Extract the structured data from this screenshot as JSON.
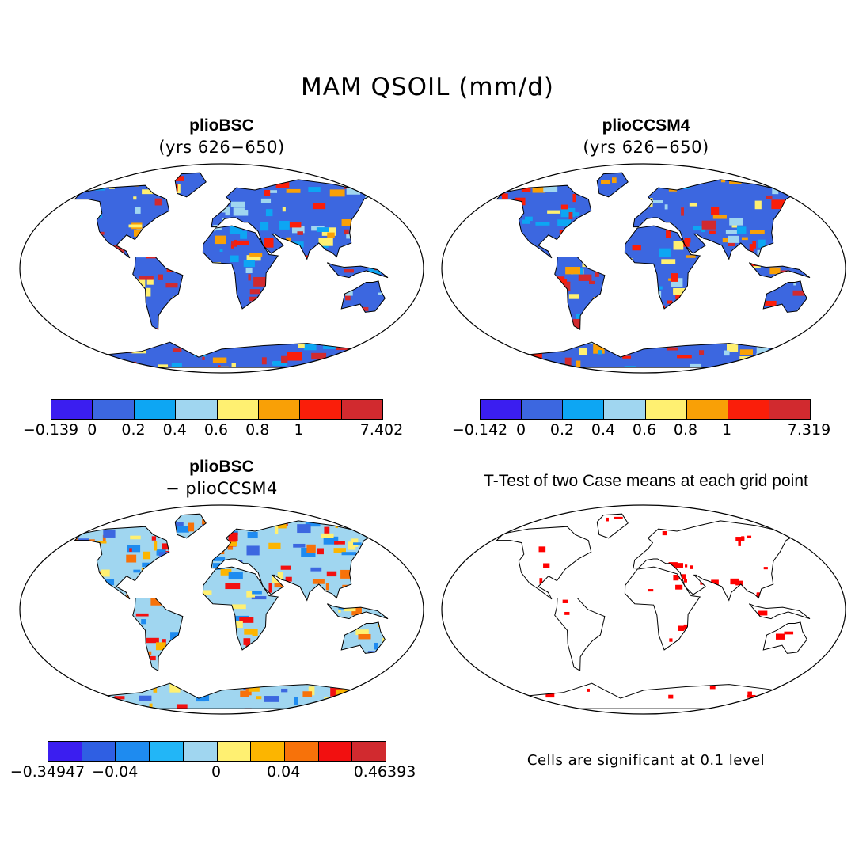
{
  "title": "MAM QSOIL (mm/d)",
  "panels": [
    {
      "id": "bsc",
      "title": "plioBSC",
      "subtitle": "(yrs 626−650)",
      "colorbar": {
        "colors": [
          "#3b1ef0",
          "#3c67e0",
          "#0da6f3",
          "#a0d6f0",
          "#fff071",
          "#f9a006",
          "#fa1e0a",
          "#d12a2f"
        ],
        "ticks": [
          "−0.139",
          "0",
          "0.2",
          "0.4",
          "0.6",
          "0.8",
          "1",
          "7.402"
        ]
      }
    },
    {
      "id": "ccsm4",
      "title": "plioCCSM4",
      "subtitle": "(yrs 626−650)",
      "colorbar": {
        "colors": [
          "#3b1ef0",
          "#3c67e0",
          "#0da6f3",
          "#a0d6f0",
          "#fff071",
          "#f9a006",
          "#fa1e0a",
          "#d12a2f"
        ],
        "ticks": [
          "−0.142",
          "0",
          "0.2",
          "0.4",
          "0.6",
          "0.8",
          "1",
          "7.319"
        ]
      }
    },
    {
      "id": "diff",
      "title": "plioBSC",
      "subtitle": "− plioCCSM4",
      "colorbar": {
        "colors": [
          "#3b1ef0",
          "#2f5fe3",
          "#1e8bf0",
          "#22b6f7",
          "#a0d6f0",
          "#fff071",
          "#fcb500",
          "#f7720a",
          "#f21010",
          "#d12a2f"
        ],
        "ticks": [
          "−0.34947",
          "−0.04",
          "0",
          "0.04",
          "0.46393"
        ]
      }
    },
    {
      "id": "ttest",
      "title": "T-Test of two Case means at each grid point",
      "note": "Cells are significant at 0.1 level"
    }
  ]
}
